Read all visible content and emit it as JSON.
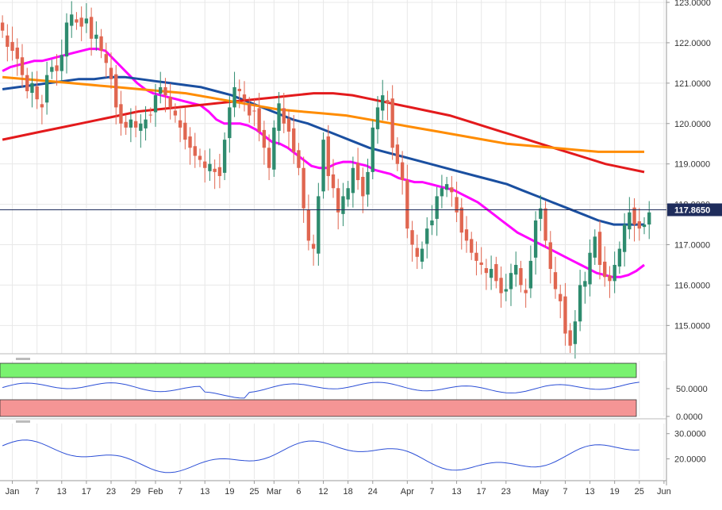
{
  "chart_data": {
    "type": "candlestick",
    "instrument_price_label": "117.8650",
    "current_price": 117.865,
    "y_ticks": [
      "123.0000",
      "122.0000",
      "121.0000",
      "120.0000",
      "119.0000",
      "118.0000",
      "117.0000",
      "116.0000",
      "115.0000"
    ],
    "ylim": [
      114.3,
      123.0
    ],
    "grid": true,
    "x_ticks": [
      {
        "i": 2,
        "label": "Jan"
      },
      {
        "i": 7,
        "label": "7"
      },
      {
        "i": 12,
        "label": "13"
      },
      {
        "i": 17,
        "label": "17"
      },
      {
        "i": 22,
        "label": "23"
      },
      {
        "i": 27,
        "label": "29"
      },
      {
        "i": 31,
        "label": "Feb"
      },
      {
        "i": 36,
        "label": "7"
      },
      {
        "i": 41,
        "label": "13"
      },
      {
        "i": 46,
        "label": "19"
      },
      {
        "i": 51,
        "label": "25"
      },
      {
        "i": 55,
        "label": "Mar"
      },
      {
        "i": 60,
        "label": "6"
      },
      {
        "i": 65,
        "label": "12"
      },
      {
        "i": 70,
        "label": "18"
      },
      {
        "i": 75,
        "label": "24"
      },
      {
        "i": 82,
        "label": "Apr"
      },
      {
        "i": 87,
        "label": "7"
      },
      {
        "i": 92,
        "label": "13"
      },
      {
        "i": 97,
        "label": "17"
      },
      {
        "i": 102,
        "label": "23"
      },
      {
        "i": 109,
        "label": "May"
      },
      {
        "i": 114,
        "label": "7"
      },
      {
        "i": 119,
        "label": "13"
      },
      {
        "i": 124,
        "label": "19"
      },
      {
        "i": 129,
        "label": "25"
      },
      {
        "i": 134,
        "label": "Jun"
      }
    ],
    "candles_close": [
      122.3,
      121.9,
      121.8,
      121.6,
      121.2,
      120.8,
      121.0,
      120.6,
      120.4,
      121.2,
      121.4,
      121.3,
      121.7,
      122.5,
      122.7,
      122.5,
      122.4,
      122.6,
      122.1,
      122.2,
      121.8,
      121.5,
      121.1,
      120.4,
      120.0,
      119.9,
      120.1,
      119.9,
      120.0,
      120.1,
      120.2,
      120.7,
      120.9,
      120.7,
      120.4,
      120.2,
      119.9,
      119.6,
      119.4,
      119.2,
      119.1,
      118.9,
      119.0,
      118.8,
      118.7,
      119.6,
      120.4,
      120.9,
      120.8,
      120.6,
      120.2,
      120.3,
      119.8,
      119.4,
      118.9,
      119.9,
      120.5,
      120.0,
      119.8,
      119.3,
      118.9,
      117.9,
      117.1,
      116.9,
      118.2,
      119.6,
      118.7,
      118.4,
      117.8,
      118.2,
      118.4,
      118.9,
      118.6,
      118.2,
      118.8,
      119.9,
      120.4,
      120.7,
      120.5,
      119.4,
      119.0,
      118.6,
      117.4,
      117.0,
      116.7,
      116.9,
      117.4,
      117.6,
      118.2,
      118.4,
      118.5,
      118.3,
      117.8,
      117.3,
      117.1,
      116.8,
      116.6,
      116.5,
      116.3,
      116.4,
      116.1,
      115.8,
      115.9,
      116.3,
      116.5,
      116.0,
      115.8,
      116.6,
      117.6,
      117.9,
      117.1,
      116.4,
      115.9,
      115.6,
      114.8,
      114.5,
      115.1,
      116.0,
      116.1,
      116.8,
      117.2,
      116.5,
      116.2,
      116.1,
      116.5,
      116.9,
      117.5,
      117.8,
      117.5,
      117.4,
      117.5,
      117.8
    ],
    "series": [
      {
        "name": "",
        "color": "#ff00ff",
        "values": [
          121.3,
          121.4,
          121.45,
          121.5,
          121.55,
          121.55,
          121.6,
          121.65,
          121.7,
          121.75,
          121.8,
          121.85,
          121.85,
          121.8,
          121.6,
          121.4,
          121.2,
          121.0,
          120.85,
          120.75,
          120.7,
          120.65,
          120.6,
          120.55,
          120.5,
          120.45,
          120.3,
          120.1,
          120.0,
          120.0,
          120.0,
          119.95,
          119.85,
          119.7,
          119.55,
          119.5,
          119.4,
          119.25,
          119.1,
          118.95,
          118.9,
          118.9,
          119.0,
          119.05,
          119.05,
          119.0,
          118.95,
          118.85,
          118.8,
          118.75,
          118.65,
          118.6,
          118.55,
          118.55,
          118.5,
          118.45,
          118.4,
          118.35,
          118.25,
          118.15,
          118.05,
          117.9,
          117.75,
          117.6,
          117.45,
          117.3,
          117.2,
          117.1,
          117.0,
          116.9,
          116.8,
          116.7,
          116.6,
          116.5,
          116.4,
          116.3,
          116.25,
          116.2,
          116.2,
          116.25,
          116.35,
          116.5
        ]
      },
      {
        "name": "",
        "color": "#1a4fa0",
        "values": [
          120.85,
          120.9,
          120.95,
          121.0,
          121.05,
          121.1,
          121.1,
          121.15,
          121.15,
          121.1,
          121.05,
          121.0,
          120.95,
          120.9,
          120.8,
          120.7,
          120.55,
          120.4,
          120.25,
          120.1,
          120.0,
          119.85,
          119.7,
          119.55,
          119.4,
          119.3,
          119.2,
          119.1,
          119.0,
          118.9,
          118.8,
          118.7,
          118.6,
          118.5,
          118.35,
          118.2,
          118.05,
          117.9,
          117.75,
          117.6,
          117.5,
          117.5,
          117.5
        ]
      },
      {
        "name": "",
        "color": "#e31a1c",
        "values": [
          119.6,
          119.7,
          119.8,
          119.9,
          120.0,
          120.1,
          120.2,
          120.3,
          120.35,
          120.4,
          120.45,
          120.5,
          120.55,
          120.6,
          120.65,
          120.7,
          120.75,
          120.75,
          120.7,
          120.6,
          120.5,
          120.4,
          120.3,
          120.2,
          120.05,
          119.9,
          119.75,
          119.6,
          119.45,
          119.3,
          119.15,
          119.0,
          118.9,
          118.8
        ]
      },
      {
        "name": "",
        "color": "#ff8c00",
        "values": [
          121.15,
          121.1,
          121.05,
          121.0,
          120.95,
          120.9,
          120.85,
          120.8,
          120.75,
          120.65,
          120.55,
          120.45,
          120.35,
          120.3,
          120.25,
          120.2,
          120.1,
          120.0,
          119.9,
          119.8,
          119.7,
          119.6,
          119.5,
          119.45,
          119.4,
          119.35,
          119.3,
          119.3,
          119.3
        ]
      }
    ],
    "rsi_panel": {
      "y_ticks": [
        "50.0000",
        "0.0000"
      ],
      "ylim": [
        0,
        100
      ],
      "overbought": 70,
      "oversold": 30
    },
    "lower_panel": {
      "y_ticks": [
        "30.0000",
        "20.0000"
      ],
      "ylim": [
        12,
        34
      ]
    }
  },
  "colors": {
    "up": "#2e8b6e",
    "down": "#e06650",
    "price_line": "#1f2d5c",
    "rsi_green": "#79f270",
    "rsi_red": "#f59595",
    "osc_line": "#2c4fd6",
    "grid": "#e8e8e8"
  }
}
